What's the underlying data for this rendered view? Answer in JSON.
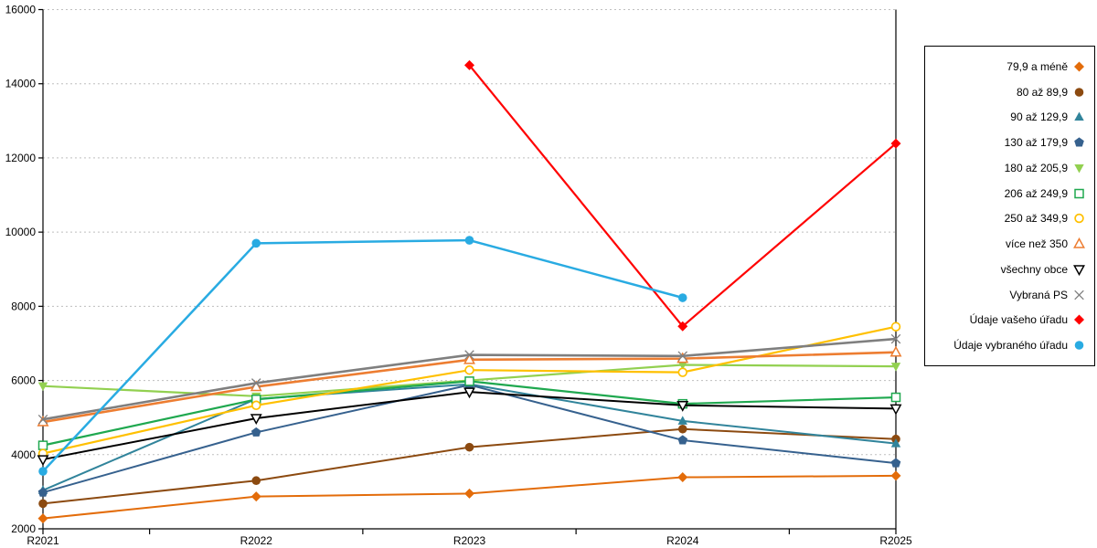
{
  "chart_data": {
    "type": "line",
    "title": "",
    "xlabel": "",
    "ylabel": "",
    "categories": [
      "R2021",
      "R2022",
      "R2023",
      "R2024",
      "R2025"
    ],
    "ylim": [
      2000,
      16000
    ],
    "y_tick_step": 2000,
    "y_ticks": [
      "2000",
      "4000",
      "6000",
      "8000",
      "10000",
      "12000",
      "14000",
      "16000"
    ],
    "grid": "horizontal-dashed",
    "gridline_color": "#bfbfbf",
    "axis_color": "#000000",
    "legend_position": "right",
    "series": [
      {
        "name": "79,9 a méně",
        "color": "#E36C0A",
        "marker": "diamond",
        "values": [
          2280,
          2870,
          2950,
          3390,
          3430
        ]
      },
      {
        "name": "80 až 89,9",
        "color": "#8C4A10",
        "marker": "circle",
        "values": [
          2680,
          3300,
          4200,
          4690,
          4420
        ]
      },
      {
        "name": "90 až 129,9",
        "color": "#31849B",
        "marker": "triangle-up",
        "values": [
          3040,
          5500,
          5900,
          4910,
          4300
        ]
      },
      {
        "name": "130 až 179,9",
        "color": "#36618E",
        "marker": "pentagon",
        "values": [
          2980,
          4600,
          5880,
          4390,
          3770
        ]
      },
      {
        "name": "180 až 205,9",
        "color": "#92D050",
        "marker": "triangle-down",
        "values": [
          5850,
          5575,
          6000,
          6420,
          6380
        ]
      },
      {
        "name": "206 až 249,9",
        "color": "#1FA84F",
        "marker": "square-open",
        "values": [
          4250,
          5490,
          5980,
          5370,
          5545
        ]
      },
      {
        "name": "250 až 349,9",
        "color": "#FFC000",
        "marker": "circle-open",
        "values": [
          4030,
          5330,
          6280,
          6220,
          7450
        ]
      },
      {
        "name": "více než 350",
        "color": "#ED7D31",
        "marker": "triangle-up-open",
        "values": [
          4880,
          5830,
          6560,
          6590,
          6760
        ]
      },
      {
        "name": "všechny obce",
        "color": "#000000",
        "marker": "triangle-down-open",
        "values": [
          3870,
          4980,
          5690,
          5330,
          5240
        ]
      },
      {
        "name": "Vybraná PS",
        "color": "#7F7F7F",
        "marker": "x",
        "values": [
          4950,
          5930,
          6690,
          6660,
          7120
        ]
      },
      {
        "name": "Údaje vašeho úřadu",
        "color": "#FF0000",
        "marker": "diamond",
        "values": [
          null,
          null,
          14500,
          7460,
          12390
        ]
      },
      {
        "name": "Údaje vybraného úřadu",
        "color": "#29ABE2",
        "marker": "circle",
        "values": [
          3550,
          9700,
          9780,
          8230,
          null
        ]
      }
    ]
  }
}
